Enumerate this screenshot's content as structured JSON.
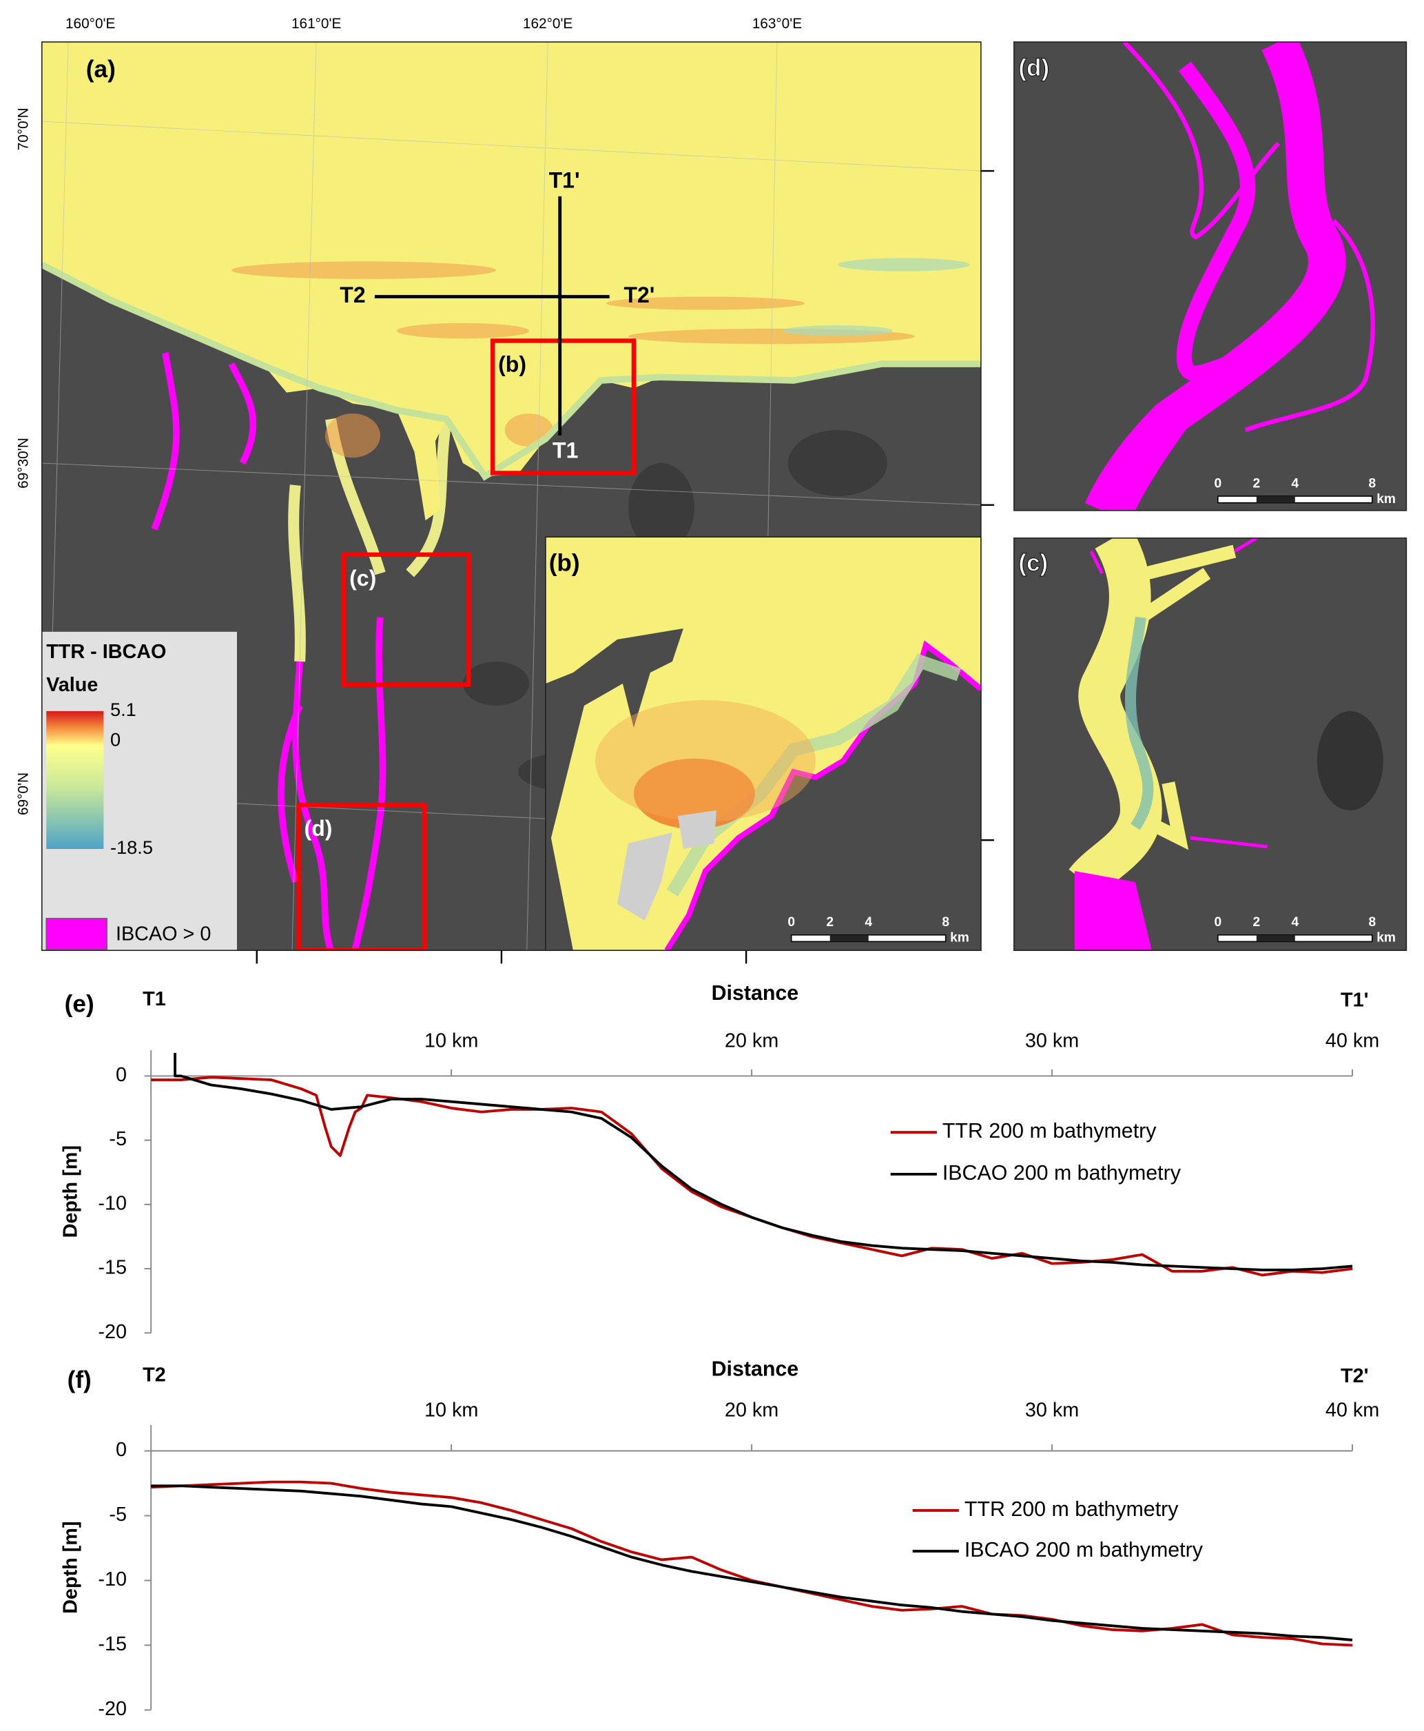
{
  "map": {
    "panel_labels": [
      "(a)",
      "(b)",
      "(c)",
      "(d)"
    ],
    "lon_labels": [
      "160°0'E",
      "161°0'E",
      "162°0'E",
      "163°0'E"
    ],
    "lat_labels": [
      "70°0'N",
      "69°30'N",
      "69°0'N"
    ],
    "transect_labels": [
      "T1'",
      "T2",
      "T2'",
      "T1"
    ],
    "legend": {
      "title": "TTR - IBCAO",
      "subtitle": "Value",
      "colorbar_ticks": [
        5.1,
        0,
        -18.5
      ],
      "mask_label": "IBCAO > 0"
    },
    "scale_bar": {
      "ticks": [
        0,
        2,
        4,
        8
      ],
      "unit": "km"
    }
  },
  "chart_data": [
    {
      "type": "line",
      "label": "(e)",
      "start_label": "T1",
      "end_label": "T1'",
      "xlabel": "Distance",
      "ylabel": "Depth [m]",
      "xlim": [
        0,
        40
      ],
      "xticks": [
        {
          "value": 10,
          "label": "10 km"
        },
        {
          "value": 20,
          "label": "20 km"
        },
        {
          "value": 30,
          "label": "30 km"
        },
        {
          "value": 40,
          "label": "40 km"
        }
      ],
      "ylim": [
        -20,
        2
      ],
      "yticks": [
        0,
        -5,
        -10,
        -15,
        -20
      ],
      "series": [
        {
          "name": "TTR 200 m bathymetry",
          "color": "#c00000",
          "x": [
            0,
            1,
            2,
            3,
            4,
            5,
            5.5,
            5.8,
            6,
            6.3,
            6.6,
            6.8,
            7,
            7.2,
            8,
            9,
            10,
            11,
            12,
            13,
            14,
            15,
            16,
            17,
            18,
            19,
            20,
            21,
            22,
            23,
            24,
            25,
            26,
            27,
            28,
            29,
            30,
            31,
            32,
            33,
            34,
            35,
            36,
            37,
            38,
            39,
            40
          ],
          "values": [
            -0.3,
            -0.3,
            -0.1,
            -0.2,
            -0.3,
            -1.0,
            -1.5,
            -4,
            -5.5,
            -6.2,
            -4,
            -2.8,
            -2.5,
            -1.5,
            -1.7,
            -2.0,
            -2.5,
            -2.8,
            -2.6,
            -2.6,
            -2.5,
            -2.8,
            -4.5,
            -7.2,
            -9,
            -10.2,
            -11,
            -11.8,
            -12.5,
            -13,
            -13.5,
            -14,
            -13.4,
            -13.5,
            -14.2,
            -13.8,
            -14.6,
            -14.5,
            -14.3,
            -13.9,
            -15.2,
            -15.2,
            -14.9,
            -15.5,
            -15.2,
            -15.3,
            -15
          ]
        },
        {
          "name": "IBCAO 200 m bathymetry",
          "color": "#000000",
          "x": [
            0.8,
            0.8,
            1,
            2,
            3,
            4,
            5,
            6,
            7,
            8,
            9,
            10,
            11,
            12,
            13,
            14,
            15,
            16,
            17,
            18,
            19,
            20,
            21,
            22,
            23,
            24,
            25,
            26,
            27,
            28,
            29,
            30,
            31,
            32,
            33,
            34,
            35,
            36,
            37,
            38,
            39,
            40
          ],
          "values": [
            1.8,
            0,
            0,
            -0.7,
            -1.0,
            -1.4,
            -1.9,
            -2.6,
            -2.4,
            -1.8,
            -1.8,
            -2.0,
            -2.2,
            -2.4,
            -2.6,
            -2.8,
            -3.3,
            -4.8,
            -7,
            -8.8,
            -10,
            -11,
            -11.8,
            -12.4,
            -12.9,
            -13.2,
            -13.4,
            -13.5,
            -13.6,
            -13.8,
            -14.0,
            -14.2,
            -14.4,
            -14.5,
            -14.7,
            -14.8,
            -14.9,
            -15.0,
            -15.1,
            -15.1,
            -15.0,
            -14.8
          ]
        }
      ]
    },
    {
      "type": "line",
      "label": "(f)",
      "start_label": "T2",
      "end_label": "T2'",
      "xlabel": "Distance",
      "ylabel": "Depth [m]",
      "xlim": [
        0,
        40
      ],
      "xticks": [
        {
          "value": 10,
          "label": "10 km"
        },
        {
          "value": 20,
          "label": "20 km"
        },
        {
          "value": 30,
          "label": "30 km"
        },
        {
          "value": 40,
          "label": "40 km"
        }
      ],
      "ylim": [
        -20,
        2
      ],
      "yticks": [
        0,
        -5,
        -10,
        -15,
        -20
      ],
      "series": [
        {
          "name": "TTR 200 m bathymetry",
          "color": "#c00000",
          "x": [
            0,
            1,
            2,
            3,
            4,
            5,
            6,
            7,
            8,
            9,
            10,
            11,
            12,
            13,
            14,
            15,
            16,
            17,
            18,
            19,
            20,
            21,
            22,
            23,
            24,
            25,
            26,
            27,
            28,
            29,
            30,
            31,
            32,
            33,
            34,
            35,
            36,
            37,
            38,
            39,
            40
          ],
          "values": [
            -2.8,
            -2.7,
            -2.6,
            -2.5,
            -2.4,
            -2.4,
            -2.5,
            -2.9,
            -3.2,
            -3.4,
            -3.6,
            -4.0,
            -4.6,
            -5.3,
            -6.0,
            -7.0,
            -7.8,
            -8.4,
            -8.2,
            -9.2,
            -10.0,
            -10.5,
            -11.0,
            -11.5,
            -12.0,
            -12.3,
            -12.2,
            -12.0,
            -12.6,
            -12.7,
            -13.0,
            -13.5,
            -13.8,
            -13.9,
            -13.7,
            -13.4,
            -14.2,
            -14.4,
            -14.5,
            -14.9,
            -15.0
          ]
        },
        {
          "name": "IBCAO 200 m bathymetry",
          "color": "#000000",
          "x": [
            0,
            1,
            2,
            3,
            4,
            5,
            6,
            7,
            8,
            9,
            10,
            11,
            12,
            13,
            14,
            15,
            16,
            17,
            18,
            19,
            20,
            21,
            22,
            23,
            24,
            25,
            26,
            27,
            28,
            29,
            30,
            31,
            32,
            33,
            34,
            35,
            36,
            37,
            38,
            39,
            40
          ],
          "values": [
            -2.7,
            -2.7,
            -2.8,
            -2.9,
            -3.0,
            -3.1,
            -3.3,
            -3.5,
            -3.8,
            -4.1,
            -4.3,
            -4.8,
            -5.3,
            -5.9,
            -6.6,
            -7.4,
            -8.2,
            -8.8,
            -9.3,
            -9.7,
            -10.1,
            -10.5,
            -10.9,
            -11.3,
            -11.6,
            -11.9,
            -12.1,
            -12.4,
            -12.6,
            -12.8,
            -13.1,
            -13.3,
            -13.5,
            -13.7,
            -13.8,
            -13.9,
            -14.0,
            -14.1,
            -14.3,
            -14.4,
            -14.6
          ]
        }
      ]
    }
  ]
}
